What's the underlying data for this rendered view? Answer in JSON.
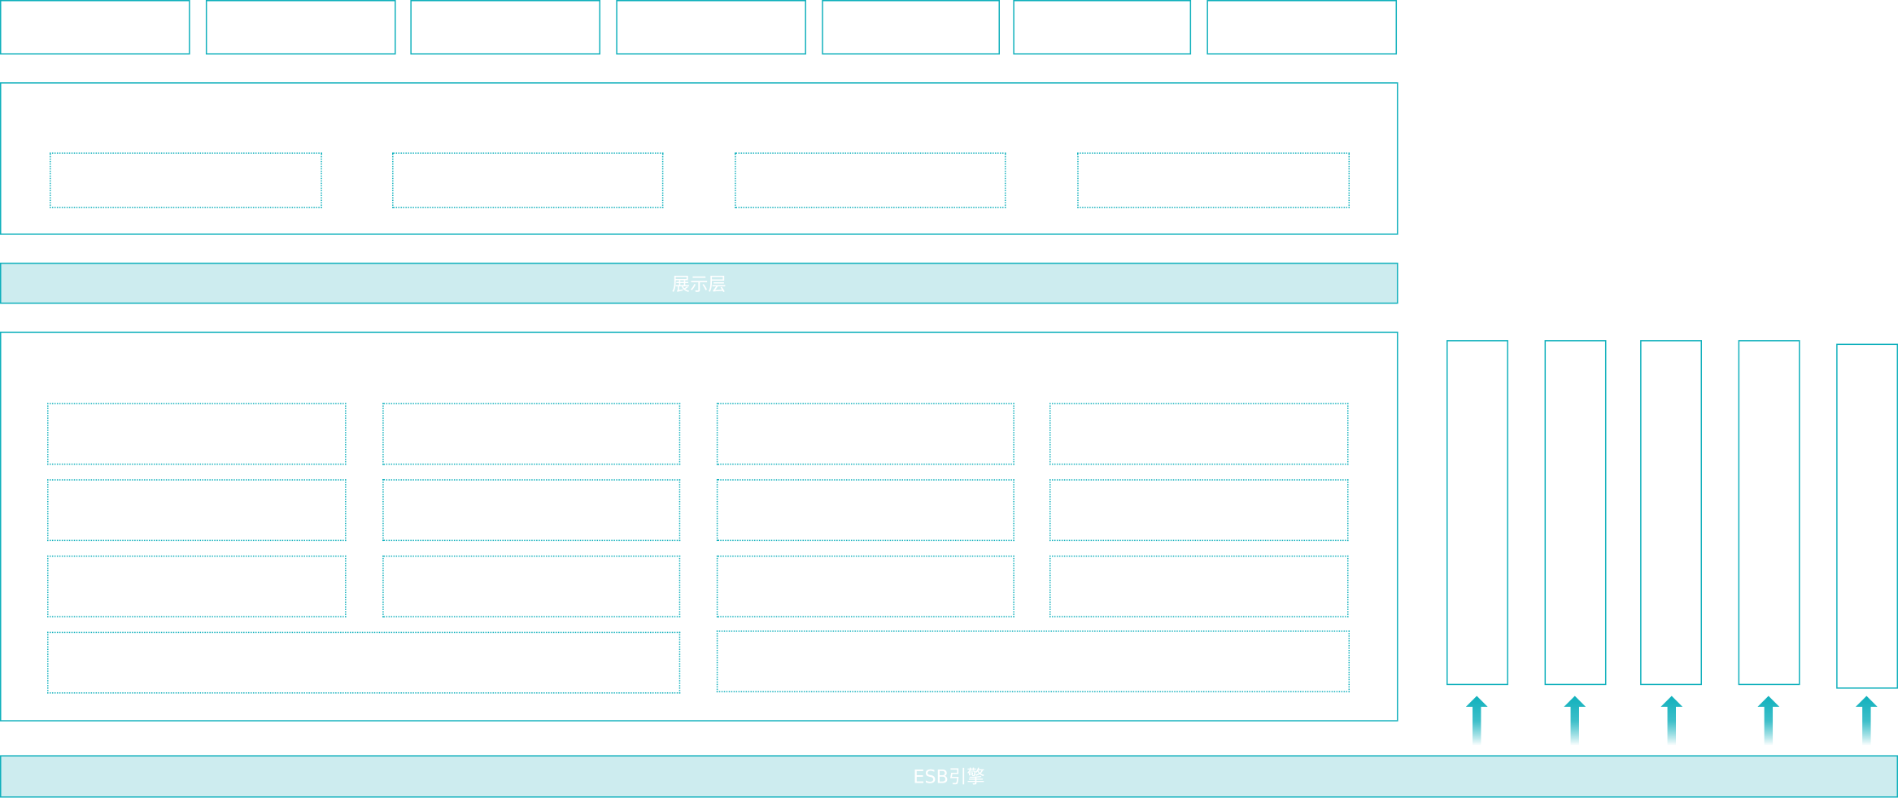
{
  "presentation_layer": {
    "label": "展示层"
  },
  "esb_bar": {
    "label": "ESB引擎"
  },
  "colors": {
    "border": "#10b0bc",
    "bar_fill": "#cdecef",
    "label": "#ffffff"
  },
  "icons": {
    "arrow": "arrow-up-icon"
  }
}
